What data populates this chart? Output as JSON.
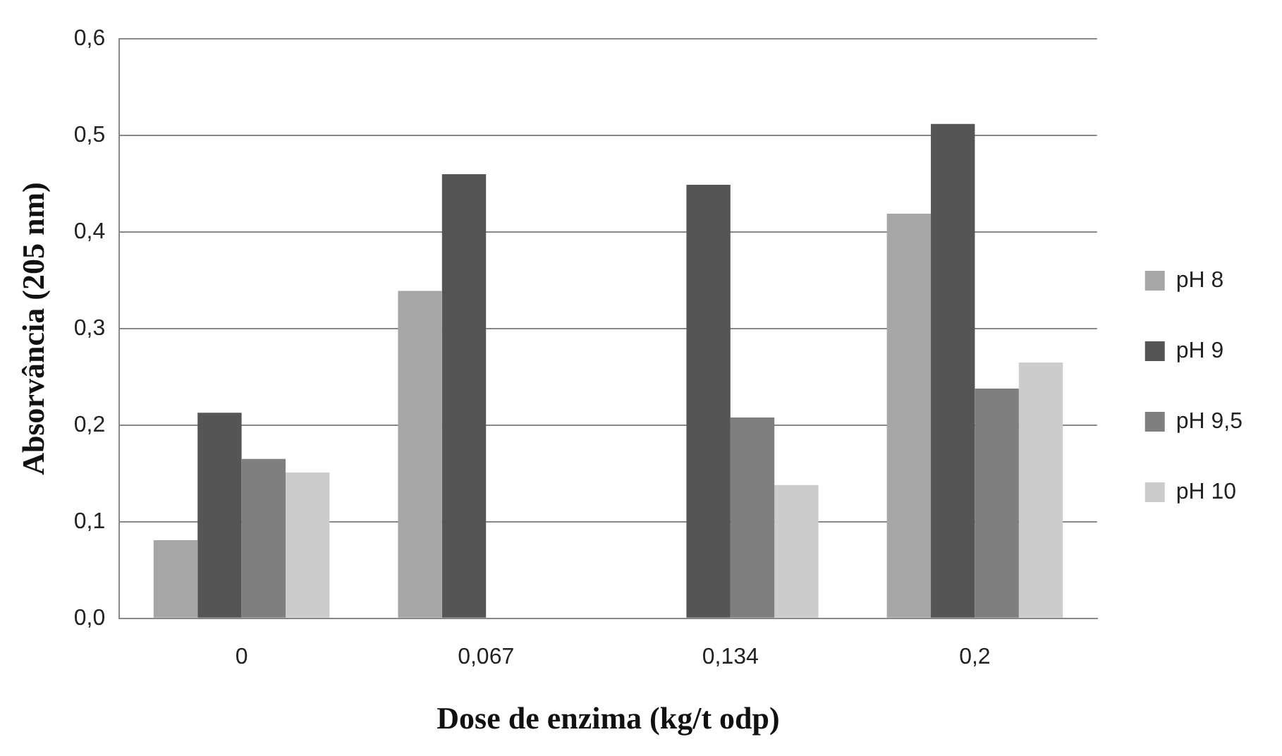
{
  "chart_data": {
    "type": "bar",
    "xlabel": "Dose de enzima (kg/t odp)",
    "ylabel": "Absorvância (205 nm)",
    "categories": [
      "0",
      "0,067",
      "0,134",
      "0,2"
    ],
    "series": [
      {
        "name": "pH 8",
        "color": "#a6a6a6",
        "values": [
          0.081,
          0.339,
          null,
          0.419
        ]
      },
      {
        "name": "pH 9",
        "color": "#555555",
        "values": [
          0.213,
          0.46,
          0.449,
          0.512
        ]
      },
      {
        "name": "pH 9,5",
        "color": "#7f7f7f",
        "values": [
          0.165,
          null,
          0.208,
          0.238
        ]
      },
      {
        "name": "pH 10",
        "color": "#cccccc",
        "values": [
          0.151,
          null,
          0.138,
          0.265
        ]
      }
    ],
    "ylim": [
      0,
      0.6
    ],
    "yticks": [
      {
        "value": 0,
        "label": "0,0"
      },
      {
        "value": 0.1,
        "label": "0,1"
      },
      {
        "value": 0.2,
        "label": "0,2"
      },
      {
        "value": 0.3,
        "label": "0,3"
      },
      {
        "value": 0.4,
        "label": "0,4"
      },
      {
        "value": 0.5,
        "label": "0,5"
      },
      {
        "value": 0.6,
        "label": "0,6"
      }
    ],
    "grid": "y",
    "legend": "right"
  }
}
